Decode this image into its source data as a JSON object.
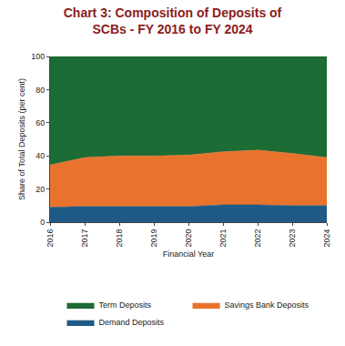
{
  "chart_data": {
    "type": "area",
    "title": [
      "Chart 3: Composition of Deposits of",
      "SCBs - FY 2016 to FY 2024"
    ],
    "x_label": "Financial Year",
    "y_label": "Share of Total Deposits (per cent)",
    "x": [
      2016,
      2017,
      2018,
      2019,
      2020,
      2021,
      2022,
      2023,
      2024
    ],
    "series": [
      {
        "name": "Demand Deposits",
        "color": "#1f5a86",
        "values": [
          9,
          9.5,
          9.5,
          9.5,
          9.5,
          10.5,
          10.5,
          10,
          10
        ]
      },
      {
        "name": "Savings Bank Deposits",
        "color": "#e9732d",
        "values": [
          25.5,
          29.5,
          30.5,
          30.5,
          31,
          32,
          33,
          31.5,
          29
        ]
      },
      {
        "name": "Term Deposits",
        "color": "#1d6b35",
        "values": [
          65.5,
          61,
          60,
          60,
          59.5,
          57.5,
          56.5,
          58.5,
          61
        ]
      }
    ],
    "xlim": [
      2016,
      2024
    ],
    "xticks": [
      2016,
      2017,
      2018,
      2019,
      2020,
      2021,
      2022,
      2023,
      2024
    ],
    "ylim": [
      0,
      100
    ],
    "yticks": [
      0,
      20,
      40,
      60,
      80,
      100
    ],
    "stacked": true,
    "grid": false,
    "legend": "bottom"
  }
}
